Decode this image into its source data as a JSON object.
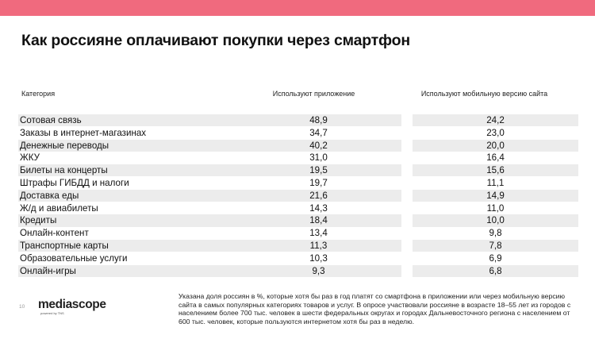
{
  "header": {
    "title": "Как россияне оплачивают покупки через смартфон"
  },
  "table": {
    "columns": [
      "Категория",
      "Используют приложение",
      "Используют мобильную версию сайта"
    ],
    "rows": [
      {
        "category": "Сотовая связь",
        "app": "48,9",
        "web": "24,2"
      },
      {
        "category": "Заказы в интернет-магазинах",
        "app": "34,7",
        "web": "23,0"
      },
      {
        "category": "Денежные переводы",
        "app": "40,2",
        "web": "20,0"
      },
      {
        "category": "ЖКУ",
        "app": "31,0",
        "web": "16,4"
      },
      {
        "category": "Билеты на концерты",
        "app": "19,5",
        "web": "15,6"
      },
      {
        "category": "Штрафы ГИБДД и налоги",
        "app": "19,7",
        "web": "11,1"
      },
      {
        "category": "Доставка еды",
        "app": "21,6",
        "web": "14,9"
      },
      {
        "category": "Ж/д и авиабилеты",
        "app": "14,3",
        "web": "11,0"
      },
      {
        "category": "Кредиты",
        "app": "18,4",
        "web": "10,0"
      },
      {
        "category": "Онлайн-контент",
        "app": "13,4",
        "web": "9,8"
      },
      {
        "category": "Транспортные карты",
        "app": "11,3",
        "web": "7,8"
      },
      {
        "category": "Образовательные услуги",
        "app": "10,3",
        "web": "6,9"
      },
      {
        "category": "Онлайн-игры",
        "app": "9,3",
        "web": "6,8"
      }
    ]
  },
  "footer": {
    "page_number": "10",
    "brand_name": "mediascope",
    "brand_tagline": "powered by TNS",
    "note": "Указана доля россиян в %, которые хотя бы раз в год платят со смартфона в приложении или через мобильную версию сайта в самых популярных категориях товаров и услуг. В опросе участвовали россияне в возрасте 18–55 лет из городов с населением более 700 тыс. человек в шести федеральных округах и городах Дальневосточного региона с населением от 600 тыс. человек, которые пользуются интернетом хотя бы раз в неделю."
  },
  "colors": {
    "top_band": "#f06a7e",
    "row_shading": "#ececec"
  }
}
